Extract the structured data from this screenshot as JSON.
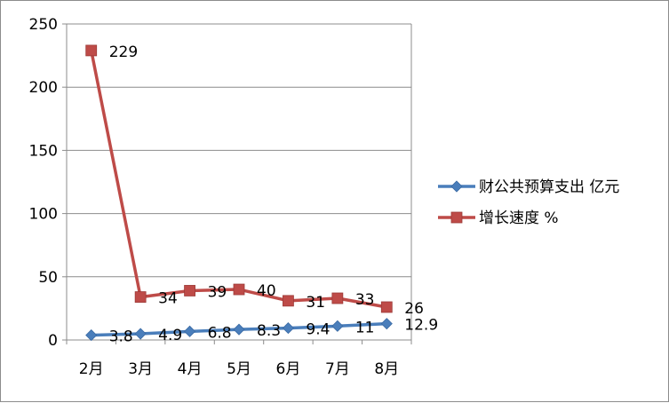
{
  "chart_data": {
    "type": "line",
    "categories": [
      "2月",
      "3月",
      "4月",
      "5月",
      "6月",
      "7月",
      "8月"
    ],
    "ylim": [
      0,
      250
    ],
    "yticks": [
      "0",
      "50",
      "100",
      "150",
      "200",
      "250"
    ],
    "grid": true,
    "legend_position": "right",
    "series": [
      {
        "name": "财公共预算支出 亿元",
        "values": [
          3.8,
          4.9,
          6.8,
          8.3,
          9.4,
          11,
          12.9
        ],
        "labels": [
          "3.8",
          "4.9",
          "6.8",
          "8.3",
          "9.4",
          "11",
          "12.9"
        ],
        "color": "#4a7ebb",
        "marker": "diamond"
      },
      {
        "name": "增长速度 %",
        "values": [
          229,
          34,
          39,
          40,
          31,
          33,
          26
        ],
        "labels": [
          "229",
          "34",
          "39",
          "40",
          "31",
          "33",
          "26"
        ],
        "color": "#be4b48",
        "marker": "square"
      }
    ]
  }
}
